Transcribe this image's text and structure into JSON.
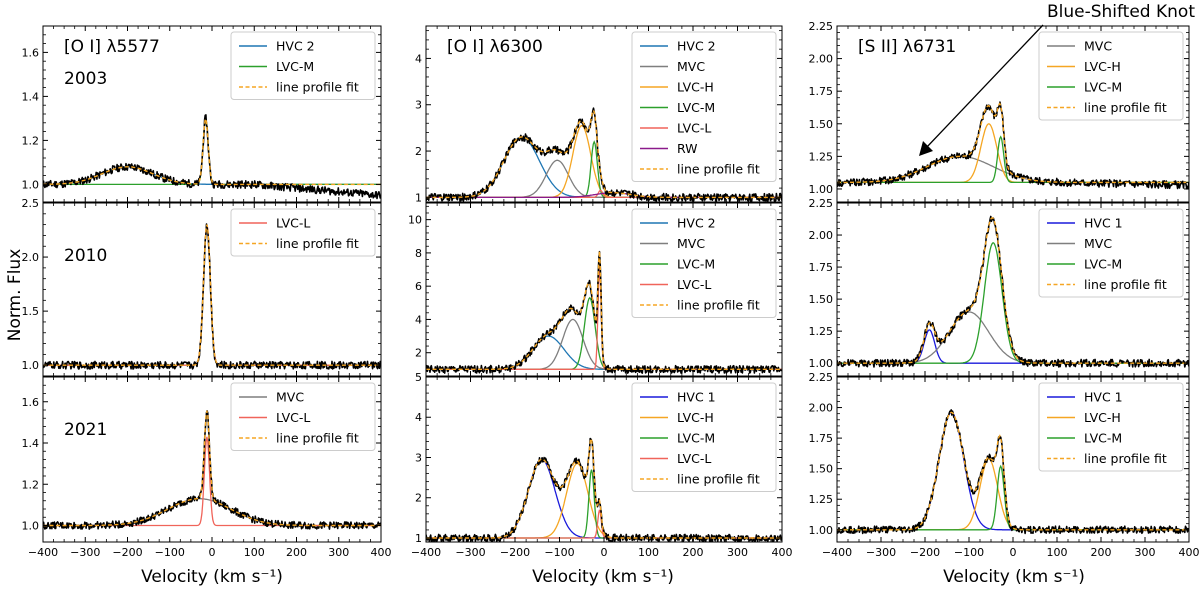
{
  "figure": {
    "ylabel": "Norm. Flux",
    "xlabel": "Velocity (km s⁻¹)",
    "annotation": "Blue-Shifted Knot"
  },
  "colors": {
    "HVC 1": "#1a1adb",
    "HVC 2": "#1f77b4",
    "MVC": "#7f7f7f",
    "LVC-H": "#f5a623",
    "LVC-M": "#2ca02c",
    "LVC-L": "#f0645a",
    "RW": "#8b1a8b",
    "line profile fit": "#f5a623",
    "observed": "#000000"
  },
  "chart_data": [
    {
      "id": "oi5577_2003",
      "type": "line",
      "col": 0,
      "row": 0,
      "title": "[O I] λ5577",
      "year": "2003",
      "ylim": [
        0.92,
        1.72
      ],
      "yticks": [
        1.0,
        1.2,
        1.4,
        1.6
      ],
      "ytick_labels": [
        "1.0",
        "1.2",
        "1.4",
        "1.6"
      ],
      "xlim": [
        -400,
        400
      ],
      "xticks": [
        -400,
        -300,
        -200,
        -100,
        0,
        100,
        200,
        300,
        400
      ],
      "baseline": 1.0,
      "obs_tail": -0.05,
      "components": [
        {
          "name": "HVC 2",
          "amp": 0.08,
          "center": -200,
          "sigma": 60
        },
        {
          "name": "LVC-M",
          "amp": 0.3,
          "center": -15,
          "sigma": 6
        }
      ],
      "legend": [
        "HVC 2",
        "LVC-M",
        "line profile fit"
      ]
    },
    {
      "id": "oi5577_2010",
      "type": "line",
      "col": 0,
      "row": 1,
      "year": "2010",
      "ylim": [
        0.9,
        2.5
      ],
      "yticks": [
        1.0,
        1.5,
        2.0,
        2.5
      ],
      "ytick_labels": [
        "1.0",
        "1.5",
        "2.0",
        "2.5"
      ],
      "xlim": [
        -400,
        400
      ],
      "xticks": [
        -400,
        -300,
        -200,
        -100,
        0,
        100,
        200,
        300,
        400
      ],
      "baseline": 1.0,
      "obs_tail": 0.0,
      "components": [
        {
          "name": "LVC-L",
          "amp": 1.3,
          "center": -12,
          "sigma": 8
        }
      ],
      "legend": [
        "LVC-L",
        "line profile fit"
      ]
    },
    {
      "id": "oi5577_2021",
      "type": "line",
      "col": 0,
      "row": 2,
      "year": "2021",
      "ylim": [
        0.92,
        1.72
      ],
      "yticks": [
        1.0,
        1.2,
        1.4,
        1.6
      ],
      "ytick_labels": [
        "1.0",
        "1.2",
        "1.4",
        "1.6"
      ],
      "xlim": [
        -400,
        400
      ],
      "xticks": [
        -400,
        -300,
        -200,
        -100,
        0,
        100,
        200,
        300,
        400
      ],
      "xtick_labels": [
        "−400",
        "−300",
        "−200",
        "−100",
        "0",
        "100",
        "200",
        "300",
        "400"
      ],
      "baseline": 1.0,
      "obs_tail": 0.0,
      "components": [
        {
          "name": "MVC",
          "amp": 0.13,
          "center": -30,
          "sigma": 75
        },
        {
          "name": "LVC-L",
          "amp": 0.43,
          "center": -12,
          "sigma": 6
        }
      ],
      "legend": [
        "MVC",
        "LVC-L",
        "line profile fit"
      ]
    },
    {
      "id": "oi6300_2003",
      "type": "line",
      "col": 1,
      "row": 0,
      "title": "[O I] λ6300",
      "ylim": [
        0.9,
        4.7
      ],
      "yticks": [
        1,
        2,
        3,
        4
      ],
      "ytick_labels": [
        "1",
        "2",
        "3",
        "4"
      ],
      "xlim": [
        -400,
        400
      ],
      "xticks": [
        -400,
        -300,
        -200,
        -100,
        0,
        100,
        200,
        300,
        400
      ],
      "baseline": 1.0,
      "obs_tail": 0.0,
      "components": [
        {
          "name": "HVC 2",
          "amp": 1.3,
          "center": -185,
          "sigma": 40
        },
        {
          "name": "MVC",
          "amp": 0.8,
          "center": -105,
          "sigma": 25
        },
        {
          "name": "LVC-H",
          "amp": 1.55,
          "center": -50,
          "sigma": 20
        },
        {
          "name": "LVC-M",
          "amp": 1.2,
          "center": -22,
          "sigma": 7
        },
        {
          "name": "LVC-L",
          "amp": 0.15,
          "center": -8,
          "sigma": 5
        },
        {
          "name": "RW",
          "amp": 0.1,
          "center": 20,
          "sigma": 40
        }
      ],
      "legend": [
        "HVC 2",
        "MVC",
        "LVC-H",
        "LVC-M",
        "LVC-L",
        "RW",
        "line profile fit"
      ]
    },
    {
      "id": "oi6300_2010",
      "type": "line",
      "col": 1,
      "row": 1,
      "ylim": [
        0.6,
        11
      ],
      "yticks": [
        2,
        4,
        6,
        8,
        10
      ],
      "ytick_labels": [
        "2",
        "4",
        "6",
        "8",
        "10"
      ],
      "xlim": [
        -400,
        400
      ],
      "xticks": [
        -400,
        -300,
        -200,
        -100,
        0,
        100,
        200,
        300,
        400
      ],
      "baseline": 1.0,
      "obs_tail": 0.0,
      "components": [
        {
          "name": "HVC 2",
          "amp": 2.0,
          "center": -125,
          "sigma": 35
        },
        {
          "name": "MVC",
          "amp": 3.0,
          "center": -70,
          "sigma": 23
        },
        {
          "name": "LVC-M",
          "amp": 4.3,
          "center": -32,
          "sigma": 12
        },
        {
          "name": "LVC-L",
          "amp": 6.2,
          "center": -10,
          "sigma": 3.5
        }
      ],
      "legend": [
        "HVC 2",
        "MVC",
        "LVC-M",
        "LVC-L",
        "line profile fit"
      ]
    },
    {
      "id": "oi6300_2021",
      "type": "line",
      "col": 1,
      "row": 2,
      "ylim": [
        0.9,
        5.0
      ],
      "yticks": [
        1,
        2,
        3,
        4,
        5
      ],
      "ytick_labels": [
        "1",
        "2",
        "3",
        "4",
        "5"
      ],
      "xlim": [
        -400,
        400
      ],
      "xticks": [
        -400,
        -300,
        -200,
        -100,
        0,
        100,
        200,
        300,
        400
      ],
      "xtick_labels": [
        "−400",
        "−300",
        "−200",
        "−100",
        "0",
        "100",
        "200",
        "300",
        "400"
      ],
      "baseline": 1.0,
      "obs_tail": 0.0,
      "components": [
        {
          "name": "HVC 1",
          "amp": 1.95,
          "center": -140,
          "sigma": 30
        },
        {
          "name": "LVC-H",
          "amp": 1.85,
          "center": -60,
          "sigma": 24
        },
        {
          "name": "LVC-M",
          "amp": 1.7,
          "center": -28,
          "sigma": 6
        },
        {
          "name": "LVC-L",
          "amp": 0.7,
          "center": -10,
          "sigma": 4
        }
      ],
      "legend": [
        "HVC 1",
        "LVC-H",
        "LVC-M",
        "LVC-L",
        "line profile fit"
      ]
    },
    {
      "id": "sii6731_2003",
      "type": "line",
      "col": 2,
      "row": 0,
      "title": "[S II] λ6731",
      "ylim": [
        0.9,
        2.25
      ],
      "yticks": [
        1.0,
        1.25,
        1.5,
        1.75,
        2.0,
        2.25
      ],
      "ytick_labels": [
        "1.00",
        "1.25",
        "1.50",
        "1.75",
        "2.00",
        "2.25"
      ],
      "xlim": [
        -400,
        400
      ],
      "xticks": [
        -400,
        -300,
        -200,
        -100,
        0,
        100,
        200,
        300,
        400
      ],
      "baseline": 1.05,
      "obs_tail": -0.02,
      "components": [
        {
          "name": "MVC",
          "amp": 0.2,
          "center": -120,
          "sigma": 75
        },
        {
          "name": "LVC-H",
          "amp": 0.45,
          "center": -55,
          "sigma": 18
        },
        {
          "name": "LVC-M",
          "amp": 0.35,
          "center": -28,
          "sigma": 7
        }
      ],
      "legend": [
        "MVC",
        "LVC-H",
        "LVC-M",
        "line profile fit"
      ]
    },
    {
      "id": "sii6731_2010",
      "type": "line",
      "col": 2,
      "row": 1,
      "ylim": [
        0.9,
        2.25
      ],
      "yticks": [
        1.0,
        1.25,
        1.5,
        1.75,
        2.0,
        2.25
      ],
      "ytick_labels": [
        "1.00",
        "1.25",
        "1.50",
        "1.75",
        "2.00",
        "2.25"
      ],
      "xlim": [
        -400,
        400
      ],
      "xticks": [
        -400,
        -300,
        -200,
        -100,
        0,
        100,
        200,
        300,
        400
      ],
      "baseline": 1.0,
      "obs_tail": 0.0,
      "components": [
        {
          "name": "HVC 1",
          "amp": 0.26,
          "center": -190,
          "sigma": 12
        },
        {
          "name": "MVC",
          "amp": 0.4,
          "center": -100,
          "sigma": 45
        },
        {
          "name": "LVC-M",
          "amp": 0.94,
          "center": -45,
          "sigma": 20
        }
      ],
      "legend": [
        "HVC 1",
        "MVC",
        "LVC-M",
        "line profile fit"
      ]
    },
    {
      "id": "sii6731_2021",
      "type": "line",
      "col": 2,
      "row": 2,
      "ylim": [
        0.9,
        2.25
      ],
      "yticks": [
        1.0,
        1.25,
        1.5,
        1.75,
        2.0,
        2.25
      ],
      "ytick_labels": [
        "1.00",
        "1.25",
        "1.50",
        "1.75",
        "2.00",
        "2.25"
      ],
      "xlim": [
        -400,
        400
      ],
      "xticks": [
        -400,
        -300,
        -200,
        -100,
        0,
        100,
        200,
        300,
        400
      ],
      "xtick_labels": [
        "−400",
        "−300",
        "−200",
        "−100",
        "0",
        "100",
        "200",
        "300",
        "400"
      ],
      "baseline": 1.0,
      "obs_tail": 0.0,
      "components": [
        {
          "name": "HVC 1",
          "amp": 0.96,
          "center": -140,
          "sigma": 28
        },
        {
          "name": "LVC-H",
          "amp": 0.58,
          "center": -55,
          "sigma": 20
        },
        {
          "name": "LVC-M",
          "amp": 0.52,
          "center": -28,
          "sigma": 8
        }
      ],
      "legend": [
        "HVC 1",
        "LVC-H",
        "LVC-M",
        "line profile fit"
      ]
    }
  ]
}
